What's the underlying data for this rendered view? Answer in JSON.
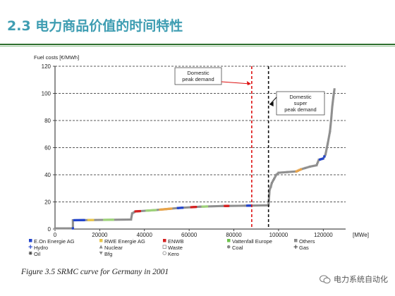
{
  "slide": {
    "title": "2.3 电力商品价值的时间特性",
    "caption": "Figure 3.5  SRMC curve for Germany in 2001",
    "watermark": "电力系统自动化"
  },
  "colors": {
    "title": "#3e9db2",
    "rule": "#2e6f2e"
  },
  "chart_data": {
    "type": "scatter",
    "ylabel": "Fuel costs [€/MWh]",
    "xunit": "[MWe]",
    "xlim": [
      0,
      130000
    ],
    "ylim": [
      0,
      120
    ],
    "xticks": [
      0,
      20000,
      40000,
      60000,
      80000,
      100000,
      120000
    ],
    "xtick_labels": [
      "0",
      "20000",
      "40000",
      "60000",
      "80000",
      "100000",
      "120000"
    ],
    "yticks": [
      0,
      20,
      40,
      60,
      80,
      100,
      120
    ],
    "ytick_labels": [
      "0",
      "20",
      "40",
      "60",
      "80",
      "100",
      "120"
    ],
    "grid": "horizontal-dashed",
    "segments": [
      {
        "x0": 0,
        "x1": 8000,
        "y": 0.5,
        "color": "#8a8a8a"
      },
      {
        "x0": 8000,
        "x1": 34000,
        "y": 7,
        "color": "#2244cc"
      },
      {
        "x0": 34000,
        "x1": 36000,
        "y": 12,
        "color": "#8a8a8a"
      },
      {
        "x0": 36000,
        "x1": 55000,
        "y": 14,
        "color": "#8a8a8a"
      },
      {
        "x0": 55000,
        "x1": 72000,
        "y": 16,
        "color": "#8a8a8a"
      },
      {
        "x0": 72000,
        "x1": 96000,
        "y": 17,
        "color": "#8a8a8a"
      },
      {
        "x0": 96000,
        "x1": 98000,
        "y": 33,
        "color": "#8a8a8a"
      },
      {
        "x0": 98000,
        "x1": 108000,
        "y": 42,
        "color": "#8a8a8a"
      },
      {
        "x0": 108000,
        "x1": 116000,
        "y": 46,
        "color": "#8a8a8a"
      },
      {
        "x0": 116000,
        "x1": 121000,
        "y": 52,
        "color": "#8a8a8a"
      },
      {
        "x0": 121000,
        "x1": 123000,
        "y": 72,
        "color": "#8a8a8a"
      },
      {
        "x0": 123000,
        "x1": 125000,
        "y": 100,
        "color": "#8a8a8a"
      }
    ],
    "curve": [
      [
        0,
        0.5
      ],
      [
        8000,
        0.5
      ],
      [
        8000,
        6.5
      ],
      [
        34000,
        7
      ],
      [
        34500,
        11.5
      ],
      [
        36000,
        13
      ],
      [
        45000,
        14
      ],
      [
        55000,
        15.5
      ],
      [
        65000,
        16.5
      ],
      [
        75000,
        17
      ],
      [
        85000,
        17.2
      ],
      [
        95500,
        17.5
      ],
      [
        96000,
        29
      ],
      [
        96500,
        31
      ],
      [
        97000,
        34
      ],
      [
        98000,
        37
      ],
      [
        99000,
        40
      ],
      [
        100000,
        41.5
      ],
      [
        104000,
        42
      ],
      [
        108000,
        42.5
      ],
      [
        110000,
        44
      ],
      [
        112000,
        45
      ],
      [
        114000,
        46
      ],
      [
        117000,
        47
      ],
      [
        118000,
        51
      ],
      [
        120000,
        52
      ],
      [
        121000,
        55
      ],
      [
        122000,
        63
      ],
      [
        123000,
        72
      ],
      [
        123500,
        80
      ],
      [
        124000,
        90
      ],
      [
        124500,
        97
      ],
      [
        125000,
        103
      ]
    ],
    "colored_runs": [
      {
        "x0": 8000,
        "x1": 13000,
        "color": "#2244cc"
      },
      {
        "x0": 15000,
        "x1": 17000,
        "color": "#e8c64a"
      },
      {
        "x0": 22000,
        "x1": 26000,
        "color": "#9ed27a"
      },
      {
        "x0": 36000,
        "x1": 38000,
        "color": "#d52020"
      },
      {
        "x0": 41000,
        "x1": 45000,
        "color": "#9ed27a"
      },
      {
        "x0": 47000,
        "x1": 52000,
        "color": "#e8a44a"
      },
      {
        "x0": 55000,
        "x1": 57000,
        "color": "#2244cc"
      },
      {
        "x0": 61000,
        "x1": 63000,
        "color": "#d52020"
      },
      {
        "x0": 66000,
        "x1": 68000,
        "color": "#9ed27a"
      },
      {
        "x0": 76000,
        "x1": 77500,
        "color": "#d52020"
      },
      {
        "x0": 86000,
        "x1": 87500,
        "color": "#2244cc"
      },
      {
        "x0": 108000,
        "x1": 110000,
        "color": "#e8a44a"
      },
      {
        "x0": 118500,
        "x1": 120500,
        "color": "#2244cc"
      }
    ],
    "vlines": [
      {
        "x": 88000,
        "color": "#dd1111",
        "label": [
          "Domestic",
          "peak demand"
        ]
      },
      {
        "x": 95500,
        "color": "#111111",
        "label": [
          "Domestic",
          "super",
          "peak demand"
        ]
      }
    ],
    "legend": [
      {
        "label": "E.On Energie AG",
        "color": "#2244cc",
        "marker": "square"
      },
      {
        "label": "RWE Energie AG",
        "color": "#e8c64a",
        "marker": "square"
      },
      {
        "label": "ENWB",
        "color": "#d52020",
        "marker": "square"
      },
      {
        "label": "Vattenfall Europe",
        "color": "#6cc24a",
        "marker": "square"
      },
      {
        "label": "Others",
        "color": "#8a8a8a",
        "marker": "square"
      },
      {
        "label": "Hydro",
        "color": "#2244cc",
        "marker": "plus"
      },
      {
        "label": "Nuclear",
        "color": "#888888",
        "marker": "triangle"
      },
      {
        "label": "Waste",
        "color": "#888888",
        "marker": "square-open"
      },
      {
        "label": "Coal",
        "color": "#888888",
        "marker": "circle"
      },
      {
        "label": "Gas",
        "color": "#444444",
        "marker": "plus"
      },
      {
        "label": "Oil",
        "color": "#444444",
        "marker": "star"
      },
      {
        "label": "Bfg",
        "color": "#888888",
        "marker": "triangle-down"
      },
      {
        "label": "Kero",
        "color": "#888888",
        "marker": "circle-open"
      }
    ]
  }
}
